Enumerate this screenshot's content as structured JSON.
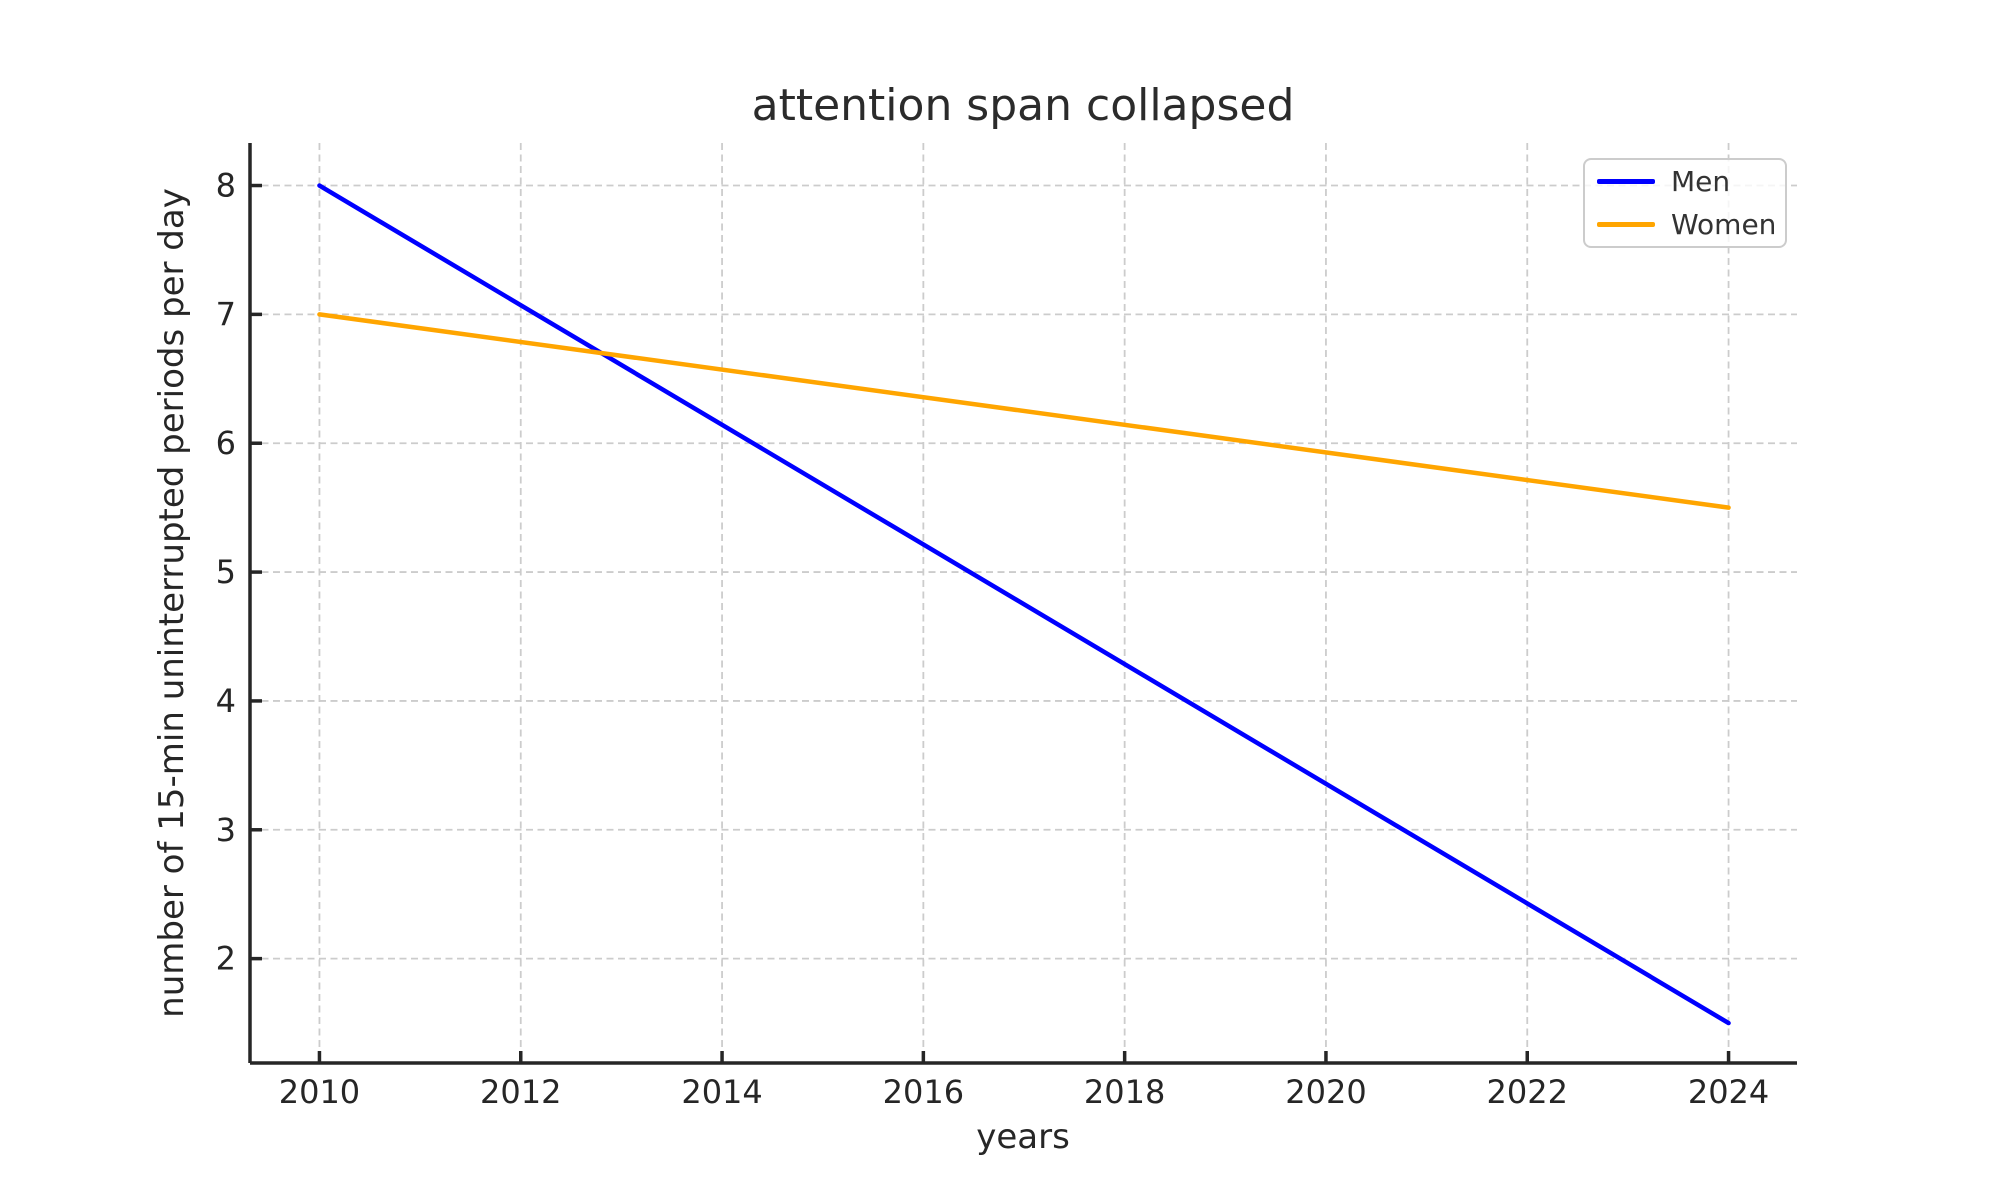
{
  "chart_data": {
    "type": "line",
    "title": "attention span collapsed",
    "xlabel": "years",
    "ylabel": "number of 15-min uninterrupted periods per day",
    "x": [
      2010,
      2024
    ],
    "series": [
      {
        "name": "Men",
        "color": "#0000ff",
        "values": [
          8.0,
          1.5
        ]
      },
      {
        "name": "Women",
        "color": "#ffa500",
        "values": [
          7.0,
          5.5
        ]
      }
    ],
    "xticks": [
      2010,
      2012,
      2014,
      2016,
      2018,
      2020,
      2022,
      2024
    ],
    "yticks": [
      2,
      3,
      4,
      5,
      6,
      7,
      8
    ],
    "xlim": [
      2009.31,
      2024.68
    ],
    "ylim": [
      1.19,
      8.33
    ],
    "grid": true,
    "grid_color": "#cccccc",
    "axis_color": "#262626",
    "tick_label_color": "#262626",
    "background": "#ffffff",
    "legend_position": "upper right"
  }
}
